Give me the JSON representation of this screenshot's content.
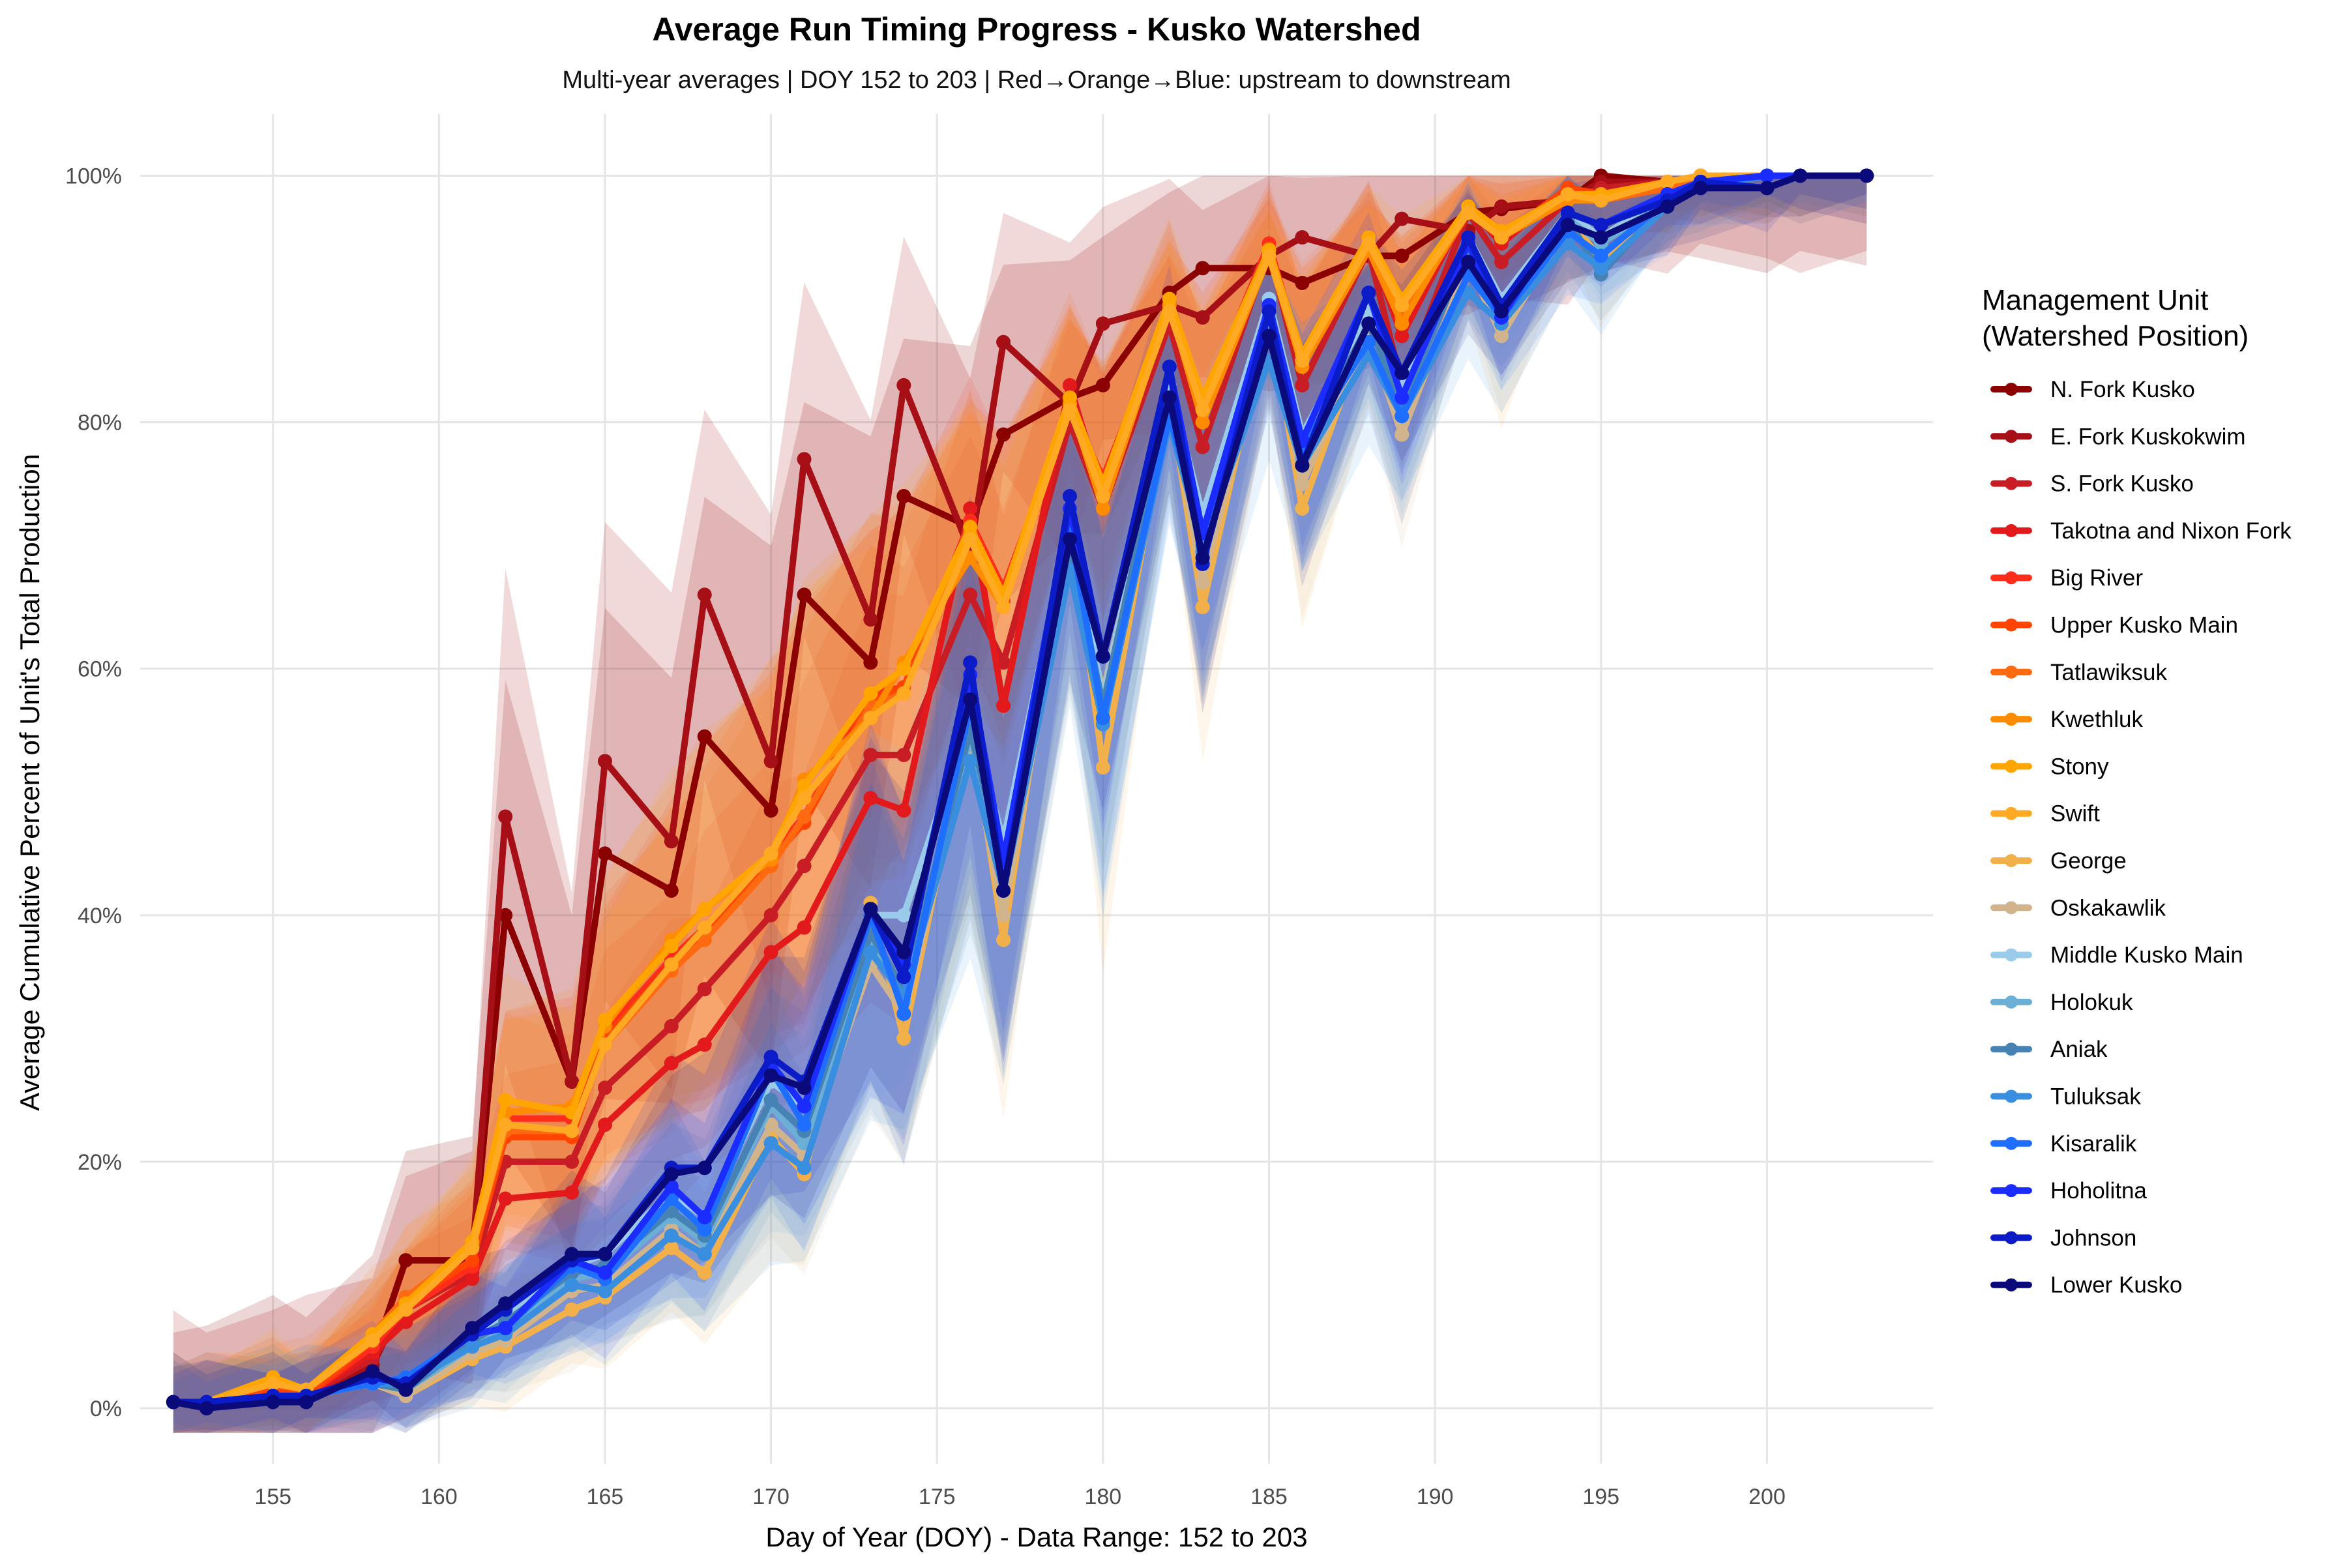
{
  "chart_data": {
    "type": "line",
    "title": "Average Run Timing Progress - Kusko Watershed",
    "subtitle": "Multi-year averages | DOY 152 to 203 | Red→Orange→Blue: upstream to downstream",
    "xlabel": "Day of Year (DOY) - Data Range: 152 to 203",
    "ylabel": "Average Cumulative Percent of Unit's Total Production",
    "xlim": [
      151,
      205
    ],
    "ylim": [
      -4.5,
      105
    ],
    "x_ticks": [
      155,
      160,
      165,
      170,
      175,
      180,
      185,
      190,
      195,
      200
    ],
    "y_ticks": [
      0,
      20,
      40,
      60,
      80,
      100
    ],
    "y_tick_labels": [
      "0%",
      "20%",
      "40%",
      "60%",
      "80%",
      "100%"
    ],
    "grid": true,
    "legend_position": "right",
    "legend_title": "Management Unit\n(Watershed Position)",
    "ribbons": "semi-transparent confidence bands around each series",
    "x": [
      152,
      153,
      155,
      156,
      158,
      159,
      161,
      162,
      164,
      165,
      167,
      168,
      170,
      171,
      173,
      174,
      176,
      177,
      179,
      180,
      182,
      183,
      185,
      186,
      188,
      189,
      191,
      192,
      194,
      195,
      197,
      198,
      200,
      201,
      203
    ],
    "series": [
      {
        "name": "N. Fork Kusko",
        "color": "#8B0000",
        "values": [
          0.5,
          0.0,
          1.0,
          1.0,
          4.0,
          12.0,
          12.0,
          40.0,
          26.5,
          45.0,
          42.0,
          54.5,
          48.5,
          66.0,
          60.5,
          74.0,
          71.5,
          79.0,
          82.0,
          83.0,
          90.5,
          92.5,
          92.5,
          91.3,
          93.5,
          93.5,
          97.0,
          97.3,
          98.0,
          100,
          99.5,
          100,
          100,
          100,
          100
        ]
      },
      {
        "name": "E. Fork Kuskokwim",
        "color": "#A50F15",
        "values": [
          0.5,
          0.5,
          1.0,
          1.0,
          3.5,
          9.0,
          12.0,
          48.0,
          26.5,
          52.5,
          46.0,
          66.0,
          52.5,
          77.0,
          64.0,
          83.0,
          69.5,
          86.5,
          81.5,
          88.0,
          89.5,
          88.5,
          93.5,
          95.0,
          93.5,
          96.5,
          95.5,
          97.5,
          98.0,
          99.5,
          99.5,
          100,
          100,
          100,
          100
        ]
      },
      {
        "name": "S. Fork Kusko",
        "color": "#C81D25",
        "values": [
          0.5,
          0.5,
          1.0,
          1.0,
          4.0,
          8.0,
          11.0,
          20.0,
          20.0,
          26.0,
          31.0,
          34.0,
          40.0,
          44.0,
          53.0,
          53.0,
          66.0,
          60.5,
          80.0,
          73.0,
          88.0,
          78.0,
          94.0,
          83.0,
          94.0,
          83.0,
          97.0,
          93.0,
          98.0,
          99.0,
          99.5,
          100,
          100,
          100,
          100
        ]
      },
      {
        "name": "Takotna and Nixon Fork",
        "color": "#E31A1C",
        "values": [
          0.5,
          0.5,
          1.0,
          1.0,
          4.5,
          7.0,
          10.5,
          17.0,
          17.5,
          23.0,
          28.0,
          29.5,
          37.0,
          39.0,
          49.5,
          48.5,
          73.0,
          57.0,
          83.0,
          74.0,
          89.5,
          80.0,
          94.0,
          85.0,
          94.5,
          87.0,
          97.5,
          94.5,
          99.0,
          98.5,
          99.5,
          100,
          100,
          100,
          100
        ]
      },
      {
        "name": "Big River",
        "color": "#FF2D1A",
        "values": [
          0.5,
          0.5,
          1.5,
          1.0,
          5.0,
          8.0,
          11.5,
          23.5,
          23.5,
          30.5,
          36.5,
          39.0,
          45.0,
          48.0,
          58.0,
          58.5,
          72.0,
          66.5,
          81.0,
          75.5,
          89.0,
          81.5,
          94.5,
          85.0,
          95.0,
          89.5,
          97.5,
          95.0,
          99.0,
          98.5,
          99.5,
          100,
          100,
          100,
          100
        ]
      },
      {
        "name": "Upper Kusko Main",
        "color": "#FF4500",
        "values": [
          0.5,
          0.5,
          1.5,
          1.0,
          5.5,
          8.5,
          12.0,
          22.0,
          22.0,
          30.0,
          36.0,
          38.5,
          44.5,
          47.5,
          57.5,
          58.5,
          71.0,
          65.5,
          81.0,
          74.5,
          89.0,
          81.0,
          94.0,
          84.5,
          94.5,
          89.0,
          97.0,
          95.0,
          99.0,
          98.5,
          99.5,
          100,
          100,
          100,
          100
        ]
      },
      {
        "name": "Tatlawiksuk",
        "color": "#FF6A10",
        "values": [
          0.5,
          0.5,
          2.0,
          1.5,
          6.0,
          9.0,
          13.0,
          22.5,
          22.5,
          29.5,
          35.5,
          38.0,
          44.0,
          48.0,
          57.0,
          58.0,
          71.0,
          66.0,
          81.5,
          75.0,
          89.5,
          81.5,
          94.0,
          85.0,
          94.5,
          88.5,
          97.0,
          95.5,
          98.5,
          98.0,
          99.0,
          100,
          100,
          100,
          100
        ]
      },
      {
        "name": "Kwethluk",
        "color": "#FF8C00",
        "values": [
          0.5,
          0.5,
          2.0,
          1.5,
          6.0,
          8.5,
          13.0,
          24.0,
          24.5,
          31.0,
          38.0,
          40.5,
          44.5,
          51.0,
          56.0,
          60.5,
          69.0,
          65.0,
          81.5,
          73.0,
          89.5,
          80.0,
          93.5,
          84.5,
          94.0,
          88.0,
          97.5,
          95.0,
          98.0,
          98.0,
          99.5,
          100,
          100,
          100,
          100
        ]
      },
      {
        "name": "Stony",
        "color": "#FFA500",
        "values": [
          0.5,
          0.5,
          2.5,
          1.5,
          6.0,
          8.5,
          13.5,
          25.0,
          24.0,
          31.5,
          37.5,
          40.5,
          45.0,
          50.5,
          58.0,
          60.0,
          71.5,
          66.0,
          82.0,
          75.0,
          90.0,
          82.0,
          94.0,
          85.5,
          95.0,
          90.0,
          97.5,
          95.5,
          98.5,
          98.5,
          99.5,
          100,
          100,
          100,
          100
        ]
      },
      {
        "name": "Swift",
        "color": "#FFAA22",
        "values": [
          0.5,
          0.5,
          2.0,
          1.5,
          5.5,
          8.0,
          13.0,
          23.0,
          22.5,
          29.5,
          36.0,
          39.0,
          45.0,
          49.5,
          56.0,
          58.0,
          70.5,
          65.0,
          81.0,
          74.0,
          89.0,
          81.0,
          93.5,
          85.0,
          94.5,
          89.5,
          97.0,
          95.0,
          98.5,
          98.0,
          99.5,
          100,
          100,
          100,
          100
        ]
      },
      {
        "name": "George",
        "color": "#F2B04A",
        "values": [
          0.5,
          0.5,
          1.0,
          1.0,
          2.0,
          1.0,
          4.0,
          5.0,
          8.0,
          9.0,
          13.0,
          11.0,
          22.0,
          19.0,
          41.0,
          30.0,
          56.0,
          38.0,
          73.0,
          52.0,
          82.0,
          65.0,
          89.0,
          73.0,
          88.0,
          79.0,
          93.0,
          87.0,
          97.0,
          93.0,
          98.0,
          99.5,
          100,
          100,
          100
        ]
      },
      {
        "name": "Oskakawlik",
        "color": "#D2B48C",
        "values": [
          0.5,
          0.5,
          1.0,
          1.0,
          2.0,
          1.0,
          4.5,
          5.5,
          9.5,
          10.0,
          14.5,
          12.5,
          23.0,
          20.5,
          36.0,
          32.0,
          54.0,
          40.0,
          70.0,
          58.0,
          82.0,
          67.0,
          88.0,
          75.0,
          87.0,
          79.0,
          93.0,
          87.0,
          96.0,
          95.0,
          98.0,
          99.5,
          100,
          100,
          100
        ]
      },
      {
        "name": "Middle Kusko Main",
        "color": "#9BCBEA",
        "values": [
          0.5,
          0.5,
          1.0,
          1.0,
          2.0,
          2.0,
          6.0,
          7.5,
          11.5,
          12.5,
          17.5,
          15.5,
          26.5,
          24.5,
          40.0,
          40.0,
          56.0,
          46.0,
          72.0,
          57.5,
          83.0,
          72.5,
          90.0,
          79.0,
          89.0,
          83.0,
          95.0,
          90.0,
          97.0,
          95.0,
          98.5,
          99.5,
          100,
          100,
          100
        ]
      },
      {
        "name": "Holokuk",
        "color": "#6BAED6",
        "values": [
          0.5,
          0.5,
          1.0,
          1.0,
          2.0,
          1.5,
          5.0,
          6.5,
          10.5,
          11.0,
          15.5,
          13.5,
          24.5,
          21.5,
          37.5,
          33.0,
          54.5,
          43.5,
          69.5,
          56.0,
          81.5,
          69.0,
          88.5,
          77.0,
          88.0,
          81.5,
          94.0,
          89.0,
          96.5,
          94.5,
          98.0,
          99.5,
          100,
          100,
          100
        ]
      },
      {
        "name": "Aniak",
        "color": "#4682B4",
        "values": [
          0.5,
          0.5,
          1.0,
          1.0,
          2.0,
          1.5,
          5.5,
          7.0,
          11.0,
          11.5,
          16.0,
          14.0,
          25.0,
          22.5,
          38.5,
          34.0,
          55.0,
          44.0,
          70.0,
          57.0,
          82.0,
          69.5,
          89.0,
          77.5,
          88.0,
          81.5,
          94.0,
          89.5,
          96.5,
          92.0,
          98.0,
          99.5,
          100,
          100,
          100
        ]
      },
      {
        "name": "Tuluksak",
        "color": "#3A8EE0",
        "values": [
          0.5,
          0.5,
          1.0,
          1.0,
          2.0,
          2.0,
          5.0,
          6.0,
          10.0,
          9.5,
          14.0,
          12.5,
          21.5,
          19.5,
          37.0,
          33.5,
          52.5,
          42.0,
          68.0,
          55.5,
          80.0,
          70.0,
          85.0,
          76.5,
          85.5,
          80.5,
          90.5,
          88.0,
          94.5,
          92.5,
          97.5,
          99.0,
          100,
          100,
          100
        ]
      },
      {
        "name": "Kisaralik",
        "color": "#1E6FFF",
        "values": [
          0.5,
          0.5,
          1.0,
          1.0,
          2.0,
          2.5,
          6.0,
          6.5,
          11.5,
          10.5,
          17.0,
          14.5,
          27.5,
          23.0,
          40.0,
          32.0,
          57.0,
          43.5,
          71.5,
          56.0,
          80.5,
          71.0,
          87.0,
          78.0,
          86.5,
          80.5,
          92.0,
          88.5,
          95.5,
          93.5,
          98.0,
          99.5,
          100,
          100,
          100
        ]
      },
      {
        "name": "Hoholitna",
        "color": "#1A2CFF",
        "values": [
          0.5,
          0.5,
          1.0,
          1.0,
          2.5,
          2.0,
          6.0,
          6.5,
          12.0,
          11.0,
          18.0,
          15.5,
          28.0,
          24.5,
          40.5,
          36.0,
          59.5,
          44.5,
          73.0,
          61.0,
          84.5,
          71.0,
          89.5,
          78.5,
          90.5,
          82.0,
          94.5,
          88.5,
          97.0,
          96.0,
          98.5,
          99.5,
          100,
          100,
          100
        ]
      },
      {
        "name": "Johnson",
        "color": "#0B1BC8",
        "values": [
          0.5,
          0.5,
          1.0,
          1.0,
          2.5,
          2.0,
          6.0,
          8.0,
          12.0,
          12.5,
          19.5,
          19.5,
          28.5,
          26.5,
          40.5,
          35.0,
          60.5,
          42.0,
          74.0,
          61.0,
          84.5,
          68.5,
          89.0,
          76.5,
          90.5,
          84.0,
          95.0,
          89.5,
          97.0,
          96.0,
          98.0,
          99.5,
          99.0,
          100,
          100
        ]
      },
      {
        "name": "Lower Kusko",
        "color": "#0A0A7A",
        "values": [
          0.5,
          0.0,
          0.5,
          0.5,
          3.0,
          1.5,
          6.5,
          8.5,
          12.5,
          12.5,
          19.0,
          19.5,
          27.0,
          26.0,
          40.5,
          37.0,
          57.5,
          42.0,
          70.5,
          61.0,
          82.0,
          69.0,
          87.0,
          76.5,
          88.0,
          84.0,
          93.0,
          89.0,
          96.0,
          95.0,
          97.5,
          99.0,
          99.0,
          100,
          100
        ]
      }
    ]
  }
}
